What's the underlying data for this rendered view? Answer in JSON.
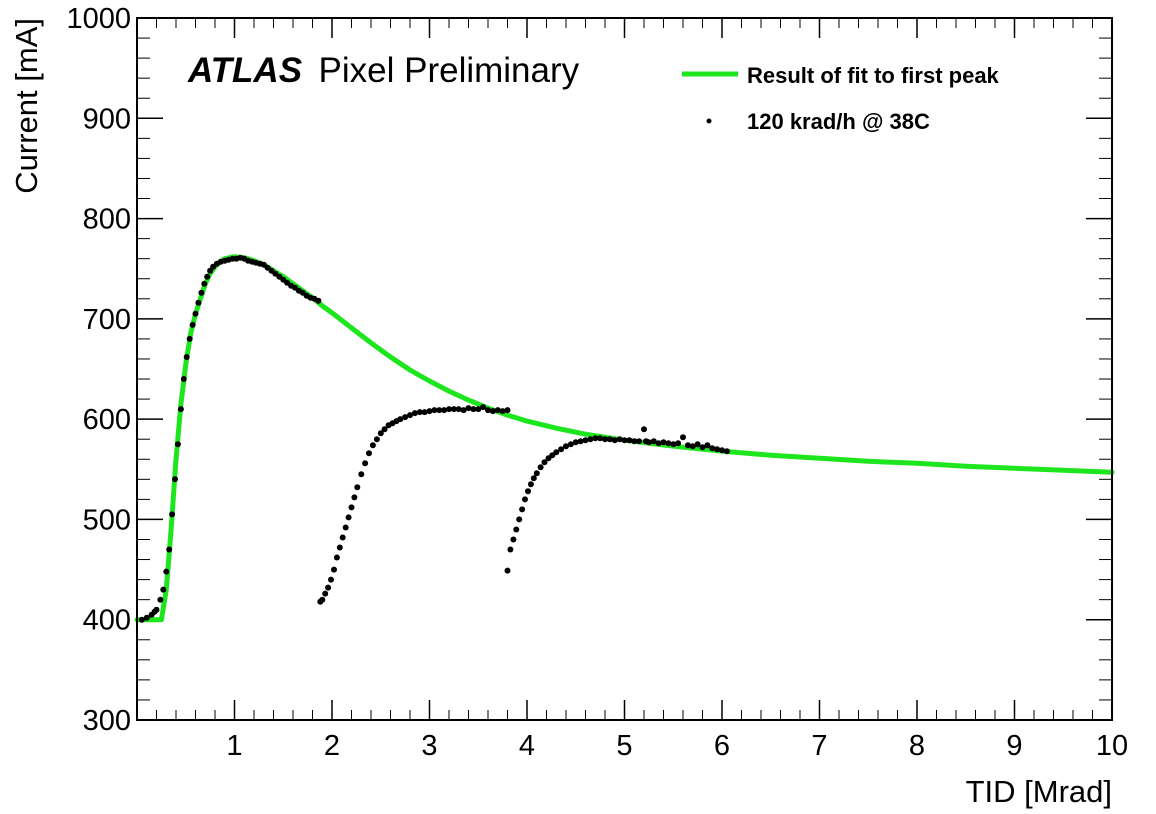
{
  "chart_data": {
    "type": "scatter",
    "title": "",
    "atlas_label": "ATLAS",
    "atlas_sublabel": "Pixel Preliminary",
    "xlabel": "TID [Mrad]",
    "ylabel": "Current [mA]",
    "xlim": [
      0,
      10
    ],
    "ylim": [
      300,
      1000
    ],
    "x_ticks": [
      1,
      2,
      3,
      4,
      5,
      6,
      7,
      8,
      9,
      10
    ],
    "y_ticks": [
      300,
      400,
      500,
      600,
      700,
      800,
      900,
      1000
    ],
    "grid": false,
    "legend_position": "top-right",
    "series": [
      {
        "name": "Result of fit to first peak",
        "kind": "line",
        "color": "#1ee61e",
        "x": [
          0.0,
          0.1,
          0.2,
          0.25,
          0.3,
          0.35,
          0.4,
          0.45,
          0.5,
          0.55,
          0.6,
          0.65,
          0.7,
          0.75,
          0.8,
          0.85,
          0.9,
          1.0,
          1.1,
          1.2,
          1.3,
          1.4,
          1.5,
          1.6,
          1.7,
          1.8,
          1.9,
          2.0,
          2.2,
          2.4,
          2.6,
          2.8,
          3.0,
          3.2,
          3.4,
          3.6,
          3.8,
          4.0,
          4.3,
          4.6,
          5.0,
          5.5,
          6.0,
          6.5,
          7.0,
          7.5,
          8.0,
          8.5,
          9.0,
          9.5,
          10.0
        ],
        "y": [
          400,
          400,
          400,
          400,
          430,
          490,
          560,
          615,
          655,
          685,
          705,
          720,
          735,
          745,
          752,
          757,
          760,
          762,
          761,
          758,
          754,
          748,
          742,
          735,
          728,
          721,
          713,
          706,
          691,
          676,
          662,
          649,
          638,
          628,
          619,
          611,
          604,
          598,
          591,
          585,
          579,
          573,
          568,
          564,
          561,
          558,
          556,
          553,
          551,
          549,
          547
        ]
      },
      {
        "name": "120 krad/h @ 38C",
        "kind": "points",
        "color": "#000000",
        "x": [
          0.05,
          0.1,
          0.15,
          0.18,
          0.2,
          0.24,
          0.27,
          0.3,
          0.33,
          0.36,
          0.39,
          0.42,
          0.45,
          0.48,
          0.51,
          0.54,
          0.57,
          0.6,
          0.63,
          0.66,
          0.69,
          0.72,
          0.75,
          0.78,
          0.82,
          0.86,
          0.9,
          0.94,
          0.98,
          1.02,
          1.06,
          1.1,
          1.14,
          1.18,
          1.22,
          1.26,
          1.3,
          1.34,
          1.38,
          1.42,
          1.46,
          1.5,
          1.54,
          1.58,
          1.62,
          1.66,
          1.7,
          1.74,
          1.78,
          1.82,
          1.86,
          1.88,
          1.9,
          1.93,
          1.96,
          1.99,
          2.02,
          2.05,
          2.08,
          2.11,
          2.14,
          2.17,
          2.2,
          2.23,
          2.26,
          2.3,
          2.34,
          2.38,
          2.42,
          2.46,
          2.5,
          2.54,
          2.58,
          2.62,
          2.66,
          2.7,
          2.75,
          2.8,
          2.85,
          2.9,
          2.95,
          3.0,
          3.05,
          3.1,
          3.15,
          3.2,
          3.25,
          3.3,
          3.35,
          3.4,
          3.45,
          3.5,
          3.55,
          3.6,
          3.65,
          3.7,
          3.75,
          3.8,
          3.8,
          3.83,
          3.86,
          3.89,
          3.92,
          3.95,
          3.98,
          4.01,
          4.04,
          4.07,
          4.1,
          4.14,
          4.18,
          4.22,
          4.26,
          4.3,
          4.35,
          4.4,
          4.45,
          4.5,
          4.55,
          4.6,
          4.65,
          4.7,
          4.75,
          4.8,
          4.85,
          4.9,
          4.95,
          5.0,
          5.05,
          5.1,
          5.15,
          5.2,
          5.22,
          5.25,
          5.3,
          5.35,
          5.4,
          5.45,
          5.5,
          5.55,
          5.6,
          5.65,
          5.7,
          5.75,
          5.8,
          5.85,
          5.9,
          5.95,
          6.0,
          6.05
        ],
        "y": [
          400,
          402,
          405,
          408,
          410,
          420,
          430,
          448,
          470,
          505,
          540,
          575,
          610,
          640,
          662,
          680,
          694,
          705,
          716,
          726,
          735,
          742,
          748,
          752,
          755,
          757,
          758,
          759,
          760,
          760,
          761,
          760,
          758,
          757,
          756,
          755,
          754,
          751,
          748,
          745,
          742,
          739,
          736,
          733,
          731,
          728,
          726,
          723,
          721,
          720,
          718,
          418,
          420,
          426,
          432,
          440,
          450,
          462,
          472,
          482,
          492,
          502,
          512,
          522,
          532,
          545,
          556,
          566,
          574,
          580,
          586,
          590,
          594,
          596,
          598,
          600,
          602,
          604,
          606,
          607,
          607,
          608,
          609,
          609,
          609,
          610,
          610,
          610,
          609,
          611,
          610,
          610,
          612,
          609,
          608,
          609,
          608,
          609,
          449,
          470,
          480,
          490,
          500,
          510,
          520,
          528,
          535,
          541,
          546,
          552,
          557,
          561,
          564,
          567,
          570,
          573,
          575,
          577,
          578,
          579,
          580,
          581,
          581,
          580,
          580,
          579,
          580,
          579,
          579,
          578,
          578,
          590,
          578,
          577,
          578,
          576,
          577,
          576,
          575,
          576,
          582,
          574,
          573,
          575,
          572,
          574,
          571,
          570,
          569,
          568
        ]
      }
    ]
  }
}
